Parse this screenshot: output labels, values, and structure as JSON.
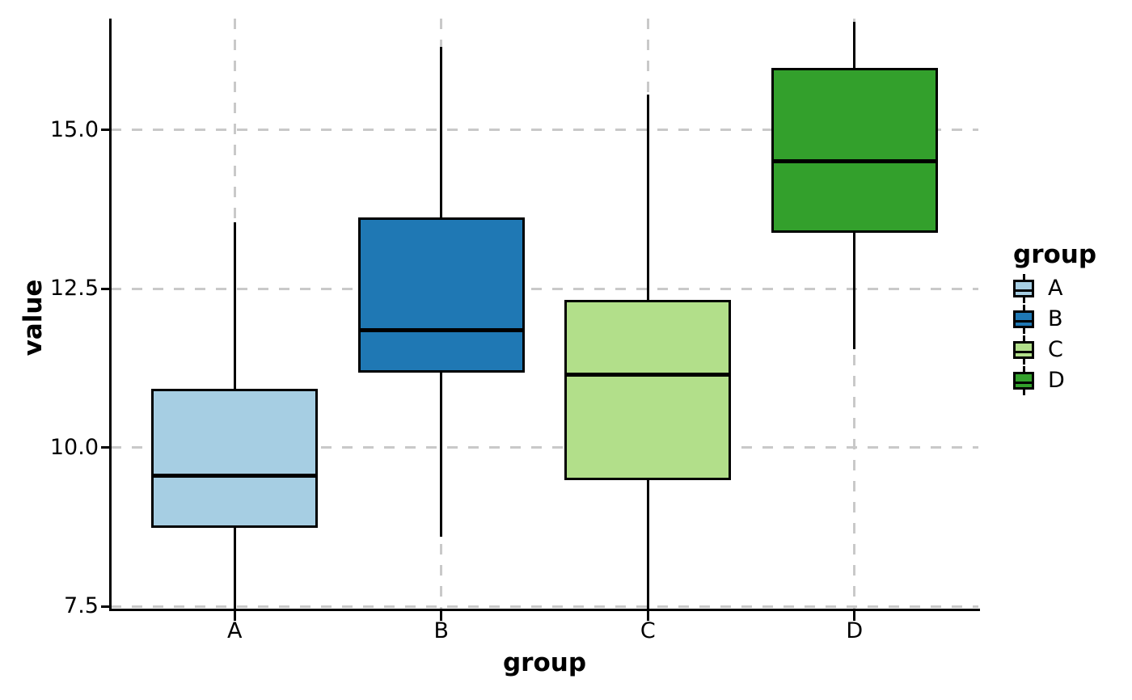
{
  "chart_data": {
    "type": "boxplot",
    "title": "",
    "xlabel": "group",
    "ylabel": "value",
    "categories": [
      "A",
      "B",
      "C",
      "D"
    ],
    "series": [
      {
        "name": "A",
        "color": "#A6CEE3",
        "whisker_low": 7.45,
        "q1": 8.75,
        "median": 9.55,
        "q3": 10.9,
        "whisker_high": 13.55
      },
      {
        "name": "B",
        "color": "#1F78B4",
        "whisker_low": 8.6,
        "q1": 11.2,
        "median": 11.85,
        "q3": 13.6,
        "whisker_high": 16.3
      },
      {
        "name": "C",
        "color": "#B2DF8A",
        "whisker_low": 7.45,
        "q1": 9.5,
        "median": 11.15,
        "q3": 12.3,
        "whisker_high": 15.55
      },
      {
        "name": "D",
        "color": "#33A02C",
        "whisker_low": 11.55,
        "q1": 13.4,
        "median": 14.5,
        "q3": 15.95,
        "whisker_high": 16.7
      }
    ],
    "y_ticks": [
      {
        "label": "15.0",
        "value": 15.0
      },
      {
        "label": "12.5",
        "value": 12.5
      },
      {
        "label": "10.0",
        "value": 10.0
      },
      {
        "label": "7.5",
        "value": 7.5
      }
    ],
    "ylim": [
      7.45,
      16.75
    ],
    "grid": {
      "style": "dashed",
      "color": "#C9C9C9",
      "horizontal": true,
      "vertical": true
    },
    "legend": {
      "title": "group",
      "position": "right",
      "entries": [
        {
          "label": "A",
          "color": "#A6CEE3"
        },
        {
          "label": "B",
          "color": "#1F78B4"
        },
        {
          "label": "C",
          "color": "#B2DF8A"
        },
        {
          "label": "D",
          "color": "#33A02C"
        }
      ]
    },
    "colors": {
      "axis": "#000000",
      "text": "#000000",
      "grid": "#C9C9C9"
    }
  }
}
